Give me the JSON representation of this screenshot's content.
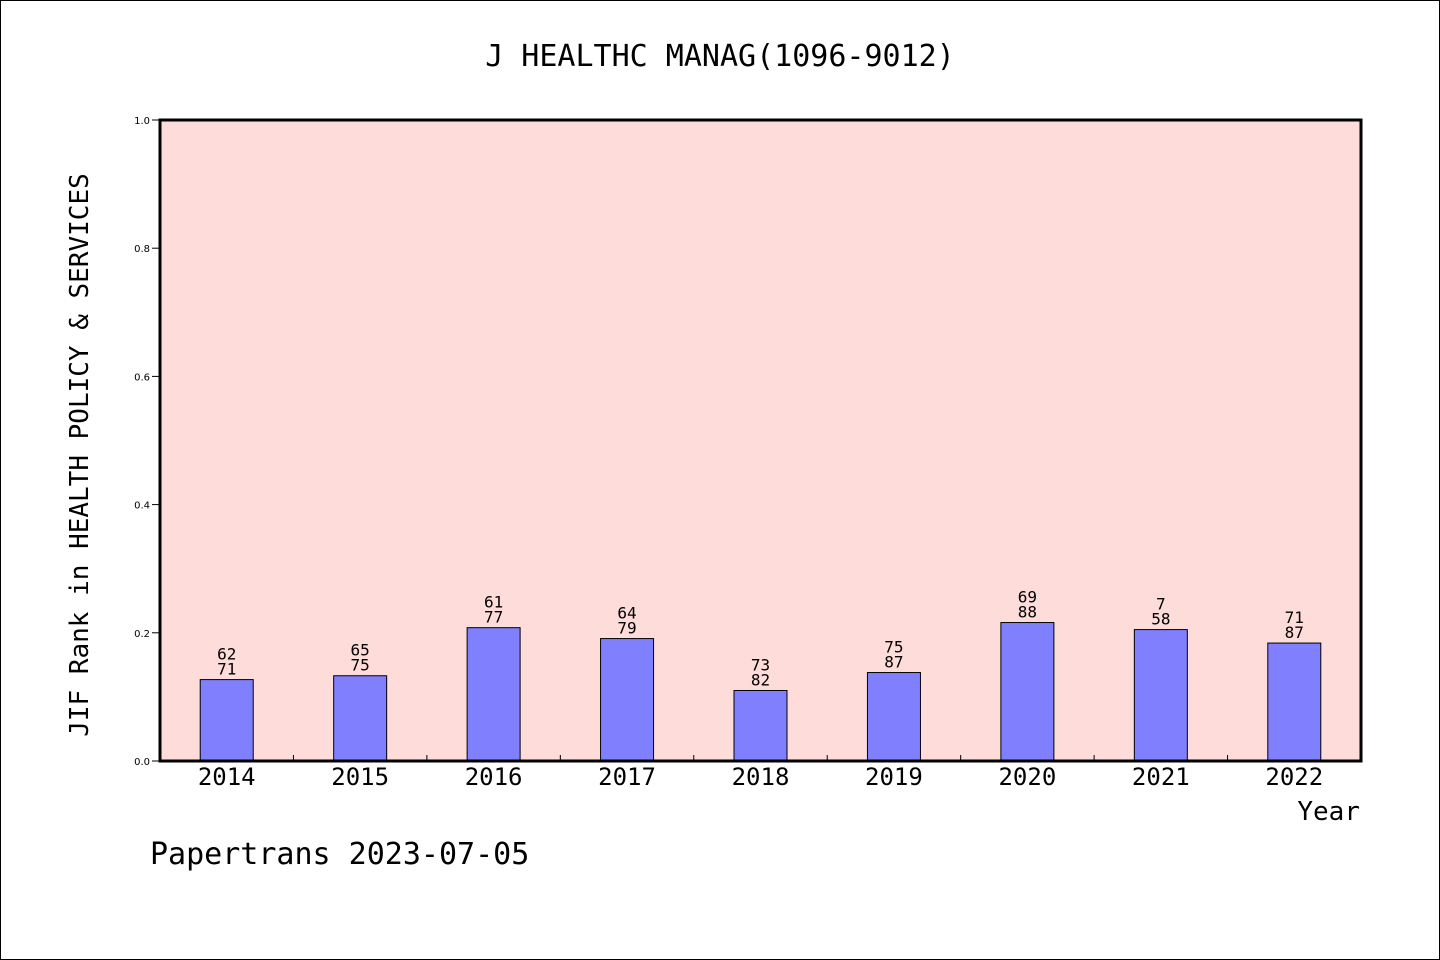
{
  "footer": "Papertrans 2023-07-05",
  "chart_data": {
    "type": "bar",
    "title": "J HEALTHC MANAG(1096-9012)",
    "xlabel": "Year",
    "ylabel": "JIF Rank in HEALTH POLICY & SERVICES",
    "ylim": [
      0,
      1.0
    ],
    "yticks": [
      "0.0",
      "0.2",
      "0.4",
      "0.6",
      "0.8",
      "1.0"
    ],
    "categories": [
      "2014",
      "2015",
      "2016",
      "2017",
      "2018",
      "2019",
      "2020",
      "2021",
      "2022"
    ],
    "values": [
      0.127,
      0.133,
      0.208,
      0.191,
      0.11,
      0.138,
      0.216,
      0.205,
      0.184
    ],
    "labels_top": [
      "62",
      "65",
      "61",
      "64",
      "73",
      "75",
      "69",
      "7",
      "71"
    ],
    "labels_bottom": [
      "71",
      "75",
      "77",
      "79",
      "82",
      "87",
      "88",
      "58",
      "87"
    ],
    "colors": {
      "bar": "#8080ff",
      "plot_bg": "#fddcd9"
    },
    "grid": false
  }
}
